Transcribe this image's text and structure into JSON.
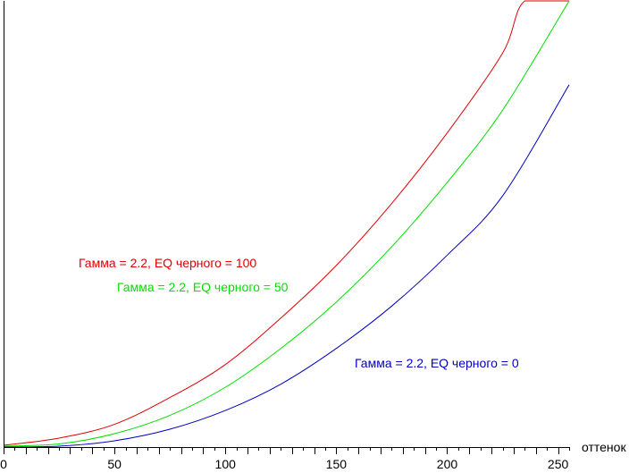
{
  "chart_data": {
    "type": "line",
    "xlabel": "оттенок",
    "ylabel": "",
    "xlim": [
      0,
      255
    ],
    "ylim": [
      0,
      1
    ],
    "xticks": [
      0,
      50,
      100,
      150,
      200,
      250
    ],
    "grid": false,
    "series": [
      {
        "name": "Гамма = 2.2, EQ черного = 100",
        "color": "#e00000",
        "x": [
          0,
          25,
          50,
          75,
          100,
          125,
          150,
          175,
          200,
          225,
          235,
          255
        ],
        "y": [
          0.004,
          0.02,
          0.051,
          0.111,
          0.185,
          0.289,
          0.407,
          0.546,
          0.704,
          0.883,
          1.0,
          1.0
        ]
      },
      {
        "name": "Гамма = 2.2, EQ черного = 50",
        "color": "#00e000",
        "x": [
          0,
          25,
          50,
          75,
          100,
          125,
          150,
          175,
          200,
          225,
          255
        ],
        "y": [
          0.002,
          0.007,
          0.03,
          0.071,
          0.134,
          0.221,
          0.325,
          0.449,
          0.593,
          0.755,
          1.0
        ]
      },
      {
        "name": "Гамма = 2.2, EQ черного = 0",
        "color": "#0000c0",
        "x": [
          0,
          25,
          50,
          75,
          100,
          125,
          150,
          175,
          200,
          225,
          255
        ],
        "y": [
          0.0,
          0.002,
          0.014,
          0.04,
          0.082,
          0.141,
          0.221,
          0.316,
          0.43,
          0.563,
          0.812
        ]
      }
    ]
  }
}
